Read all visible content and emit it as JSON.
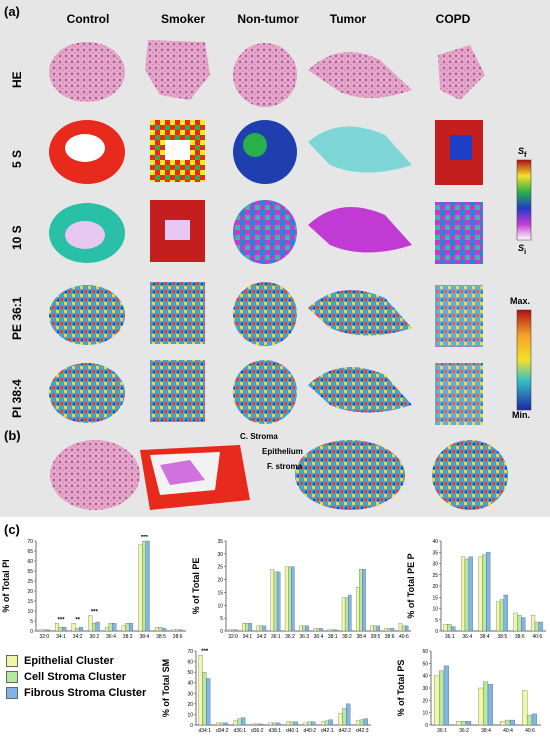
{
  "panels": {
    "a": "(a)",
    "b": "(b)",
    "c": "(c)"
  },
  "columns": [
    "Control",
    "Smoker",
    "Non-tumor",
    "Tumor",
    "COPD"
  ],
  "rows": [
    "HE",
    "5 S",
    "10 S",
    "PE 36:1",
    "PI 38:4"
  ],
  "colorbars": {
    "cluster": {
      "top": "S",
      "top_sub": "f",
      "bottom": "S",
      "bottom_sub": "i"
    },
    "intensity": {
      "top": "Max.",
      "bottom": "Min."
    }
  },
  "annotations": [
    "C. Stroma",
    "Epithelium",
    "F. stroma"
  ],
  "legend": [
    {
      "name": "Epithelial Cluster",
      "color": "#f2f7a8"
    },
    {
      "name": "Cell Stroma Cluster",
      "color": "#b6eaa0"
    },
    {
      "name": "Fibrous Stroma Cluster",
      "color": "#7fb5e8"
    }
  ],
  "chart_data": [
    {
      "type": "bar",
      "ylabel": "% of Total PI",
      "categories": [
        "32:0",
        "34:1",
        "34:2",
        "36:2",
        "36:4",
        "38:3",
        "38:4",
        "38:5",
        "38:6"
      ],
      "yticks": [
        "0",
        "5",
        "10",
        "15",
        "20",
        "25",
        "55",
        "60",
        "65",
        "70"
      ],
      "ylim": [
        0,
        70
      ],
      "significance": [
        "",
        "***",
        "**",
        "***",
        "",
        "",
        "***",
        "",
        ""
      ],
      "series": [
        {
          "name": "Epithelial Cluster",
          "values": [
            1,
            6,
            6,
            12,
            3,
            4,
            67,
            3,
            1
          ]
        },
        {
          "name": "Cell Stroma Cluster",
          "values": [
            1,
            3,
            2,
            6,
            6,
            6,
            70,
            3,
            1
          ]
        },
        {
          "name": "Fibrous Stroma Cluster",
          "values": [
            1,
            3,
            3,
            7,
            6,
            6,
            70,
            2,
            1
          ]
        }
      ]
    },
    {
      "type": "bar",
      "ylabel": "% of Total PE",
      "categories": [
        "32:0",
        "34:1",
        "34:2",
        "36:1",
        "36:2",
        "36:3",
        "36:4",
        "38:1",
        "38:2",
        "38:4",
        "38:5",
        "38:6",
        "40:6"
      ],
      "yticks": [
        "0",
        "5",
        "10",
        "15",
        "20",
        "25",
        "30",
        "35"
      ],
      "ylim": [
        0,
        35
      ],
      "series": [
        {
          "name": "Epithelial Cluster",
          "values": [
            0.5,
            3,
            2,
            24,
            25,
            2,
            1,
            0.5,
            13,
            17,
            2,
            1,
            3
          ]
        },
        {
          "name": "Cell Stroma Cluster",
          "values": [
            0.5,
            3,
            2,
            23,
            25,
            2,
            1,
            0.5,
            13,
            24,
            2,
            1,
            2
          ]
        },
        {
          "name": "Fibrous Stroma Cluster",
          "values": [
            0.5,
            3,
            2,
            23,
            25,
            2,
            1,
            0.5,
            14,
            24,
            2,
            1,
            2
          ]
        }
      ]
    },
    {
      "type": "bar",
      "ylabel": "% of Total PE P",
      "categories": [
        "36:1",
        "36:4",
        "38:4",
        "38:5",
        "38:6",
        "40:6"
      ],
      "yticks": [
        "0",
        "5",
        "10",
        "15",
        "20",
        "25",
        "30",
        "35",
        "40"
      ],
      "ylim": [
        0,
        40
      ],
      "series": [
        {
          "name": "Epithelial Cluster",
          "values": [
            3,
            33,
            33,
            13,
            8,
            7
          ]
        },
        {
          "name": "Cell Stroma Cluster",
          "values": [
            3,
            32,
            34,
            14,
            7,
            4
          ]
        },
        {
          "name": "Fibrous Stroma Cluster",
          "values": [
            2,
            33,
            35,
            16,
            6,
            4
          ]
        }
      ]
    },
    {
      "type": "bar",
      "ylabel": "% of Total SM",
      "categories": [
        "d34:1",
        "d34:2",
        "d36:1",
        "d36:2",
        "d38:1",
        "d40:1",
        "d40:2",
        "d42:1",
        "d42:2",
        "d42:3"
      ],
      "yticks": [
        "0",
        "10",
        "20",
        "30",
        "40",
        "50",
        "60",
        "70"
      ],
      "ylim": [
        0,
        70
      ],
      "significance": [
        "***",
        "",
        "",
        "",
        "",
        "",
        "",
        "",
        "",
        ""
      ],
      "series": [
        {
          "name": "Epithelial Cluster",
          "values": [
            66,
            2,
            4,
            1,
            2,
            3,
            2,
            3,
            11,
            4
          ]
        },
        {
          "name": "Cell Stroma Cluster",
          "values": [
            50,
            2,
            6,
            1,
            2,
            3,
            3,
            4,
            16,
            5
          ]
        },
        {
          "name": "Fibrous Stroma Cluster",
          "values": [
            44,
            2,
            7,
            1,
            2,
            3,
            3,
            5,
            20,
            6
          ]
        }
      ]
    },
    {
      "type": "bar",
      "ylabel": "% of Total PS",
      "categories": [
        "36:1",
        "36:2",
        "38:4",
        "40:4",
        "40:6"
      ],
      "yticks": [
        "0",
        "10",
        "20",
        "30",
        "40",
        "50",
        "60"
      ],
      "ylim": [
        0,
        60
      ],
      "series": [
        {
          "name": "Epithelial Cluster",
          "values": [
            40,
            3,
            30,
            3,
            28
          ]
        },
        {
          "name": "Cell Stroma Cluster",
          "values": [
            44,
            3,
            35,
            4,
            8
          ]
        },
        {
          "name": "Fibrous Stroma Cluster",
          "values": [
            48,
            3,
            33,
            4,
            9
          ]
        }
      ]
    }
  ]
}
